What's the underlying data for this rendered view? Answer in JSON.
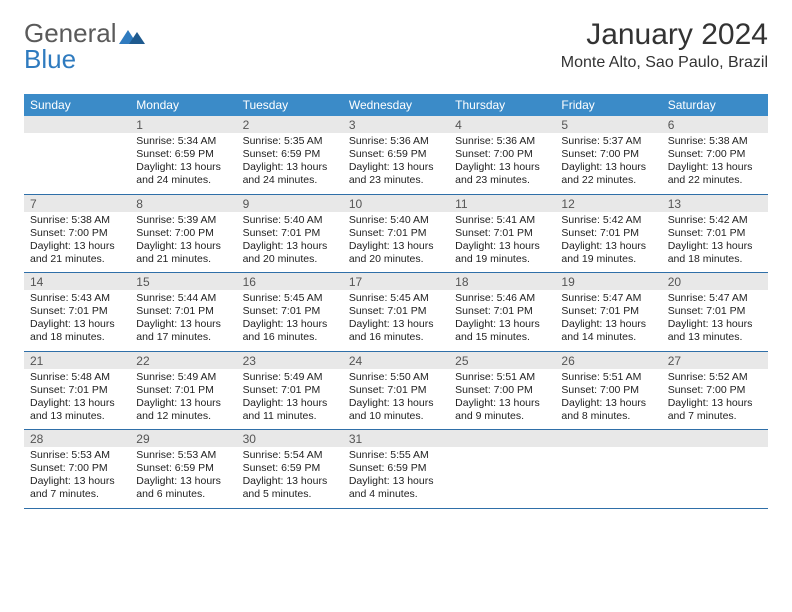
{
  "logo": {
    "word1": "General",
    "word2": "Blue"
  },
  "title": "January 2024",
  "location": "Monte Alto, Sao Paulo, Brazil",
  "colors": {
    "header_bg": "#3b8bc8",
    "header_text": "#ffffff",
    "daynum_bg": "#e8e8e8",
    "border": "#2f6fa8",
    "logo_gray": "#5a5a5a",
    "logo_blue": "#2f7bbf"
  },
  "day_labels": [
    "Sunday",
    "Monday",
    "Tuesday",
    "Wednesday",
    "Thursday",
    "Friday",
    "Saturday"
  ],
  "weeks": [
    {
      "nums": [
        "",
        "1",
        "2",
        "3",
        "4",
        "5",
        "6"
      ],
      "cells": [
        "",
        "Sunrise: 5:34 AM\nSunset: 6:59 PM\nDaylight: 13 hours and 24 minutes.",
        "Sunrise: 5:35 AM\nSunset: 6:59 PM\nDaylight: 13 hours and 24 minutes.",
        "Sunrise: 5:36 AM\nSunset: 6:59 PM\nDaylight: 13 hours and 23 minutes.",
        "Sunrise: 5:36 AM\nSunset: 7:00 PM\nDaylight: 13 hours and 23 minutes.",
        "Sunrise: 5:37 AM\nSunset: 7:00 PM\nDaylight: 13 hours and 22 minutes.",
        "Sunrise: 5:38 AM\nSunset: 7:00 PM\nDaylight: 13 hours and 22 minutes."
      ]
    },
    {
      "nums": [
        "7",
        "8",
        "9",
        "10",
        "11",
        "12",
        "13"
      ],
      "cells": [
        "Sunrise: 5:38 AM\nSunset: 7:00 PM\nDaylight: 13 hours and 21 minutes.",
        "Sunrise: 5:39 AM\nSunset: 7:00 PM\nDaylight: 13 hours and 21 minutes.",
        "Sunrise: 5:40 AM\nSunset: 7:01 PM\nDaylight: 13 hours and 20 minutes.",
        "Sunrise: 5:40 AM\nSunset: 7:01 PM\nDaylight: 13 hours and 20 minutes.",
        "Sunrise: 5:41 AM\nSunset: 7:01 PM\nDaylight: 13 hours and 19 minutes.",
        "Sunrise: 5:42 AM\nSunset: 7:01 PM\nDaylight: 13 hours and 19 minutes.",
        "Sunrise: 5:42 AM\nSunset: 7:01 PM\nDaylight: 13 hours and 18 minutes."
      ]
    },
    {
      "nums": [
        "14",
        "15",
        "16",
        "17",
        "18",
        "19",
        "20"
      ],
      "cells": [
        "Sunrise: 5:43 AM\nSunset: 7:01 PM\nDaylight: 13 hours and 18 minutes.",
        "Sunrise: 5:44 AM\nSunset: 7:01 PM\nDaylight: 13 hours and 17 minutes.",
        "Sunrise: 5:45 AM\nSunset: 7:01 PM\nDaylight: 13 hours and 16 minutes.",
        "Sunrise: 5:45 AM\nSunset: 7:01 PM\nDaylight: 13 hours and 16 minutes.",
        "Sunrise: 5:46 AM\nSunset: 7:01 PM\nDaylight: 13 hours and 15 minutes.",
        "Sunrise: 5:47 AM\nSunset: 7:01 PM\nDaylight: 13 hours and 14 minutes.",
        "Sunrise: 5:47 AM\nSunset: 7:01 PM\nDaylight: 13 hours and 13 minutes."
      ]
    },
    {
      "nums": [
        "21",
        "22",
        "23",
        "24",
        "25",
        "26",
        "27"
      ],
      "cells": [
        "Sunrise: 5:48 AM\nSunset: 7:01 PM\nDaylight: 13 hours and 13 minutes.",
        "Sunrise: 5:49 AM\nSunset: 7:01 PM\nDaylight: 13 hours and 12 minutes.",
        "Sunrise: 5:49 AM\nSunset: 7:01 PM\nDaylight: 13 hours and 11 minutes.",
        "Sunrise: 5:50 AM\nSunset: 7:01 PM\nDaylight: 13 hours and 10 minutes.",
        "Sunrise: 5:51 AM\nSunset: 7:00 PM\nDaylight: 13 hours and 9 minutes.",
        "Sunrise: 5:51 AM\nSunset: 7:00 PM\nDaylight: 13 hours and 8 minutes.",
        "Sunrise: 5:52 AM\nSunset: 7:00 PM\nDaylight: 13 hours and 7 minutes."
      ]
    },
    {
      "nums": [
        "28",
        "29",
        "30",
        "31",
        "",
        "",
        ""
      ],
      "cells": [
        "Sunrise: 5:53 AM\nSunset: 7:00 PM\nDaylight: 13 hours and 7 minutes.",
        "Sunrise: 5:53 AM\nSunset: 6:59 PM\nDaylight: 13 hours and 6 minutes.",
        "Sunrise: 5:54 AM\nSunset: 6:59 PM\nDaylight: 13 hours and 5 minutes.",
        "Sunrise: 5:55 AM\nSunset: 6:59 PM\nDaylight: 13 hours and 4 minutes.",
        "",
        "",
        ""
      ]
    }
  ]
}
